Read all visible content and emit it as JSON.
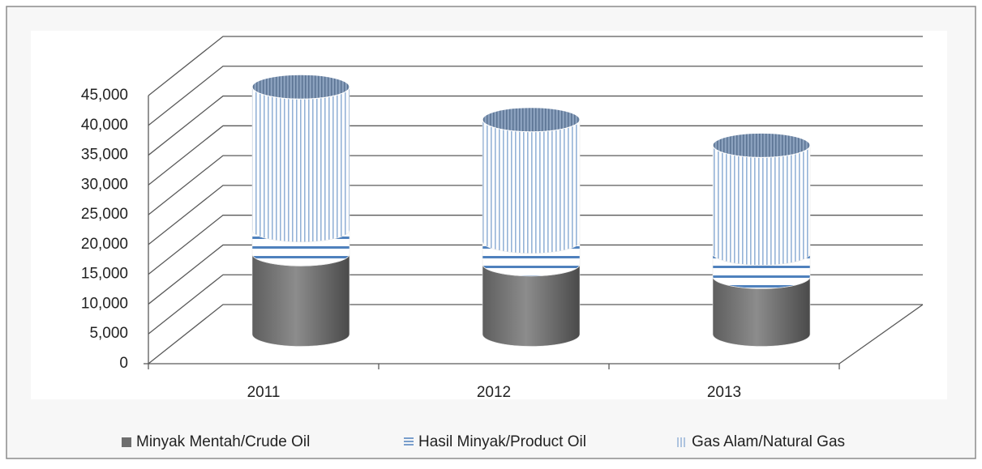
{
  "chart_data": {
    "type": "bar3d_cylinder_stacked",
    "categories": [
      "2011",
      "2012",
      "2013"
    ],
    "series": [
      {
        "name": "Minyak Mentah/Crude Oil",
        "color": "#7a7a7a",
        "values": [
          13500,
          11800,
          9700
        ]
      },
      {
        "name": "Hasil Minyak/Product Oil",
        "color": "#4f81bd",
        "values": [
          4000,
          3800,
          3900
        ]
      },
      {
        "name": "Gas Alam/Natural Gas",
        "color": "#95b3d7",
        "values": [
          24000,
          20400,
          18100
        ]
      }
    ],
    "ylim": [
      0,
      45000
    ],
    "yticks": [
      0,
      {
        "value": 5000,
        "label": "5,000"
      },
      {
        "value": 10000,
        "label": "10,000"
      },
      {
        "value": 15000,
        "label": "15,000"
      },
      {
        "value": 20000,
        "label": "20,000"
      },
      {
        "value": 25000,
        "label": "25,000"
      },
      {
        "value": 30000,
        "label": "30,000"
      },
      {
        "value": 35000,
        "label": "35,000"
      },
      {
        "value": 40000,
        "label": "40,000"
      },
      {
        "value": 45000,
        "label": "45,000"
      }
    ],
    "grid": true,
    "legend": "bottom"
  }
}
